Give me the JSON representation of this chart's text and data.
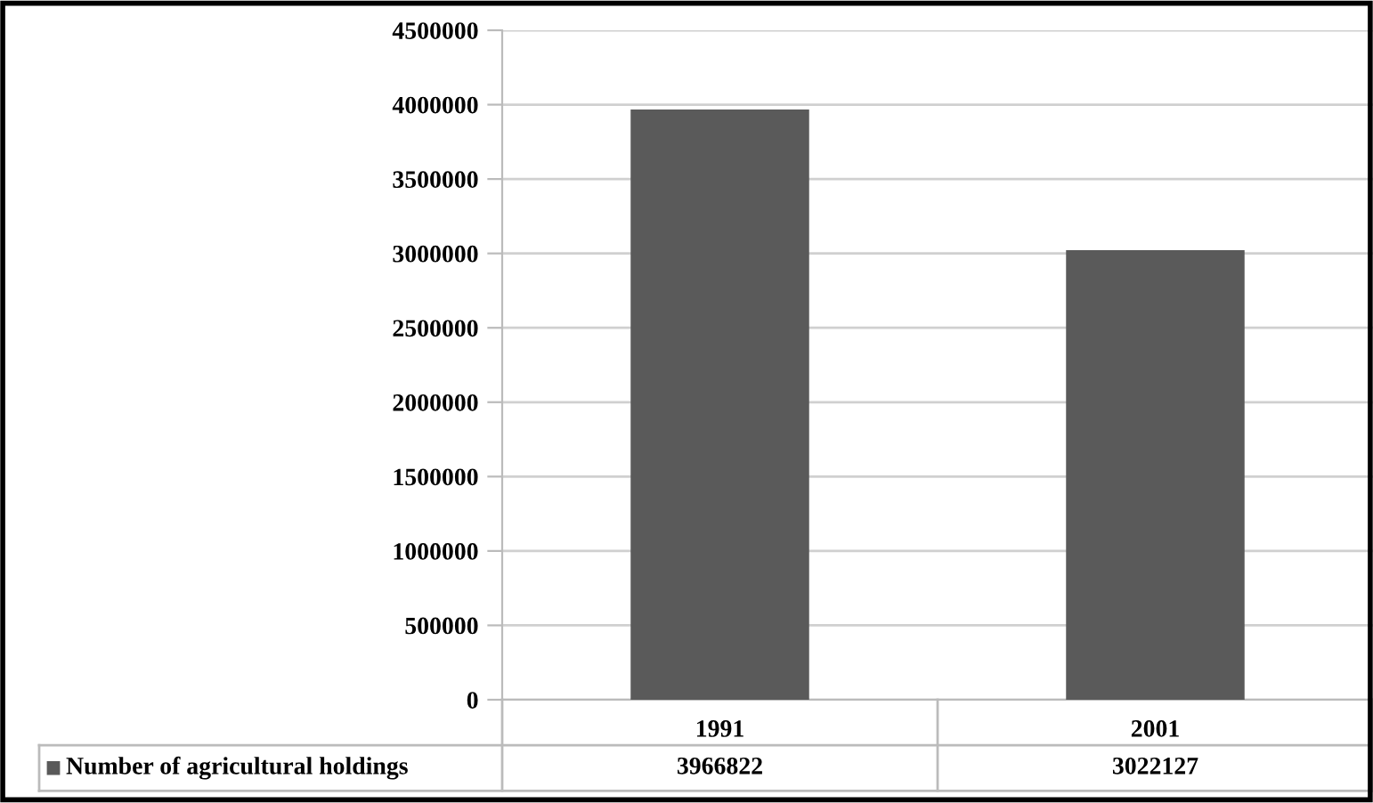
{
  "chart_data": {
    "type": "bar",
    "categories": [
      "1991",
      "2001"
    ],
    "series": [
      {
        "name": "Number of agricultural holdings",
        "color": "#5a5a5a",
        "values": [
          3966822,
          3022127
        ]
      }
    ],
    "ylim": [
      0,
      4500000
    ],
    "yticks": [
      0,
      500000,
      1000000,
      1500000,
      2000000,
      2500000,
      3000000,
      3500000,
      4000000,
      4500000
    ],
    "grid": "y",
    "legend": "bottom",
    "data_labels": true
  }
}
